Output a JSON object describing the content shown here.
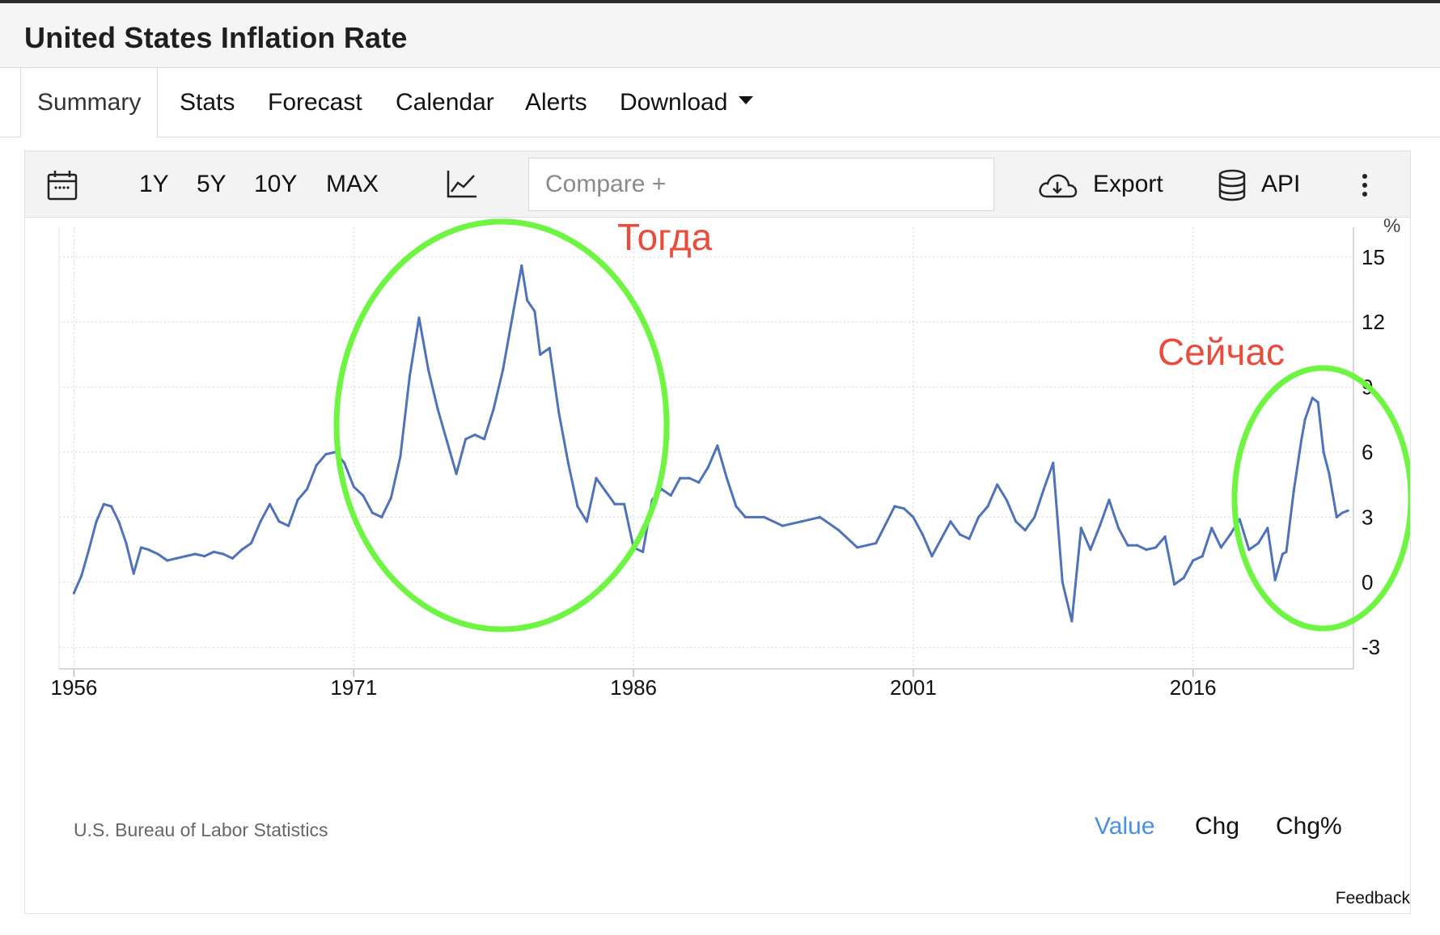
{
  "header": {
    "title": "United States Inflation Rate"
  },
  "tabs": [
    {
      "label": "Summary"
    },
    {
      "label": "Stats"
    },
    {
      "label": "Forecast"
    },
    {
      "label": "Calendar"
    },
    {
      "label": "Alerts"
    },
    {
      "label": "Download"
    }
  ],
  "toolbar": {
    "ranges": [
      "1Y",
      "5Y",
      "10Y",
      "MAX"
    ],
    "compare_placeholder": "Compare +",
    "export_label": "Export",
    "api_label": "API"
  },
  "annotations": {
    "then": "Тогда",
    "now": "Сейчас"
  },
  "annotation_colors": {
    "text": "#e74c3c",
    "ellipse": "#6ef542",
    "series": "#4f72b8"
  },
  "footer": {
    "source": "U.S. Bureau of Labor Statistics",
    "modes": [
      "Value",
      "Chg",
      "Chg%"
    ],
    "active_mode": "Value",
    "feedback": "Feedback"
  },
  "chart_data": {
    "type": "line",
    "title": "",
    "xlabel": "",
    "ylabel": "%",
    "xlim": [
      1955.2,
      2024.6
    ],
    "ylim": [
      -4,
      16
    ],
    "x_ticks": [
      "1956",
      "1971",
      "1986",
      "2001",
      "2016"
    ],
    "y_ticks": [
      15,
      12,
      9,
      6,
      3,
      0,
      -3
    ],
    "grid": true,
    "series": [
      {
        "name": "",
        "x": [
          1956.0,
          1956.4,
          1956.8,
          1957.2,
          1957.6,
          1958.0,
          1958.4,
          1958.8,
          1959.2,
          1959.6,
          1960.0,
          1960.5,
          1961.0,
          1961.5,
          1962.0,
          1962.5,
          1963.0,
          1963.5,
          1964.0,
          1964.5,
          1965.0,
          1965.5,
          1966.0,
          1966.5,
          1967.0,
          1967.5,
          1968.0,
          1968.5,
          1969.0,
          1969.5,
          1970.0,
          1970.5,
          1971.0,
          1971.5,
          1972.0,
          1972.5,
          1973.0,
          1973.5,
          1974.0,
          1974.5,
          1975.0,
          1975.5,
          1976.0,
          1976.5,
          1977.0,
          1977.5,
          1978.0,
          1978.5,
          1979.0,
          1979.5,
          1980.0,
          1980.3,
          1980.7,
          1981.0,
          1981.5,
          1982.0,
          1982.5,
          1983.0,
          1983.5,
          1984.0,
          1984.5,
          1985.0,
          1985.5,
          1986.0,
          1986.5,
          1987.0,
          1987.5,
          1988.0,
          1988.5,
          1989.0,
          1989.5,
          1990.0,
          1990.5,
          1991.0,
          1991.5,
          1992.0,
          1993.0,
          1994.0,
          1995.0,
          1996.0,
          1997.0,
          1998.0,
          1999.0,
          2000.0,
          2000.5,
          2001.0,
          2001.5,
          2002.0,
          2002.5,
          2003.0,
          2003.5,
          2004.0,
          2004.5,
          2005.0,
          2005.5,
          2006.0,
          2006.5,
          2007.0,
          2007.5,
          2008.0,
          2008.5,
          2009.0,
          2009.5,
          2010.0,
          2010.5,
          2011.0,
          2011.5,
          2012.0,
          2012.5,
          2013.0,
          2013.5,
          2014.0,
          2014.5,
          2015.0,
          2015.5,
          2016.0,
          2016.5,
          2017.0,
          2017.5,
          2018.0,
          2018.5,
          2019.0,
          2019.5,
          2020.0,
          2020.4,
          2020.8,
          2021.0,
          2021.4,
          2021.8,
          2022.0,
          2022.4,
          2022.7,
          2023.0,
          2023.3,
          2023.7,
          2024.0,
          2024.3
        ],
        "values": [
          -0.5,
          0.3,
          1.5,
          2.8,
          3.6,
          3.5,
          2.8,
          1.8,
          0.4,
          1.6,
          1.5,
          1.3,
          1.0,
          1.1,
          1.2,
          1.3,
          1.2,
          1.4,
          1.3,
          1.1,
          1.5,
          1.8,
          2.8,
          3.6,
          2.8,
          2.6,
          3.8,
          4.3,
          5.4,
          5.9,
          6.0,
          5.5,
          4.4,
          4.0,
          3.2,
          3.0,
          3.9,
          5.8,
          9.5,
          12.2,
          9.8,
          8.0,
          6.5,
          5.0,
          6.6,
          6.8,
          6.6,
          8.0,
          9.8,
          12.2,
          14.6,
          13.0,
          12.5,
          10.5,
          10.8,
          7.8,
          5.5,
          3.5,
          2.8,
          4.8,
          4.2,
          3.6,
          3.6,
          1.6,
          1.4,
          3.8,
          4.3,
          4.0,
          4.8,
          4.8,
          4.6,
          5.3,
          6.3,
          4.8,
          3.5,
          3.0,
          3.0,
          2.6,
          2.8,
          3.0,
          2.4,
          1.6,
          1.8,
          3.5,
          3.4,
          3.0,
          2.2,
          1.2,
          2.0,
          2.8,
          2.2,
          2.0,
          3.0,
          3.5,
          4.5,
          3.8,
          2.8,
          2.4,
          3.0,
          4.3,
          5.5,
          0.0,
          -1.8,
          2.5,
          1.5,
          2.6,
          3.8,
          2.5,
          1.7,
          1.7,
          1.5,
          1.6,
          2.1,
          -0.1,
          0.2,
          1.0,
          1.2,
          2.5,
          1.6,
          2.2,
          2.9,
          1.5,
          1.8,
          2.5,
          0.1,
          1.3,
          1.4,
          4.2,
          6.5,
          7.5,
          8.5,
          8.3,
          6.0,
          5.0,
          3.0,
          3.2,
          3.3
        ]
      }
    ]
  }
}
